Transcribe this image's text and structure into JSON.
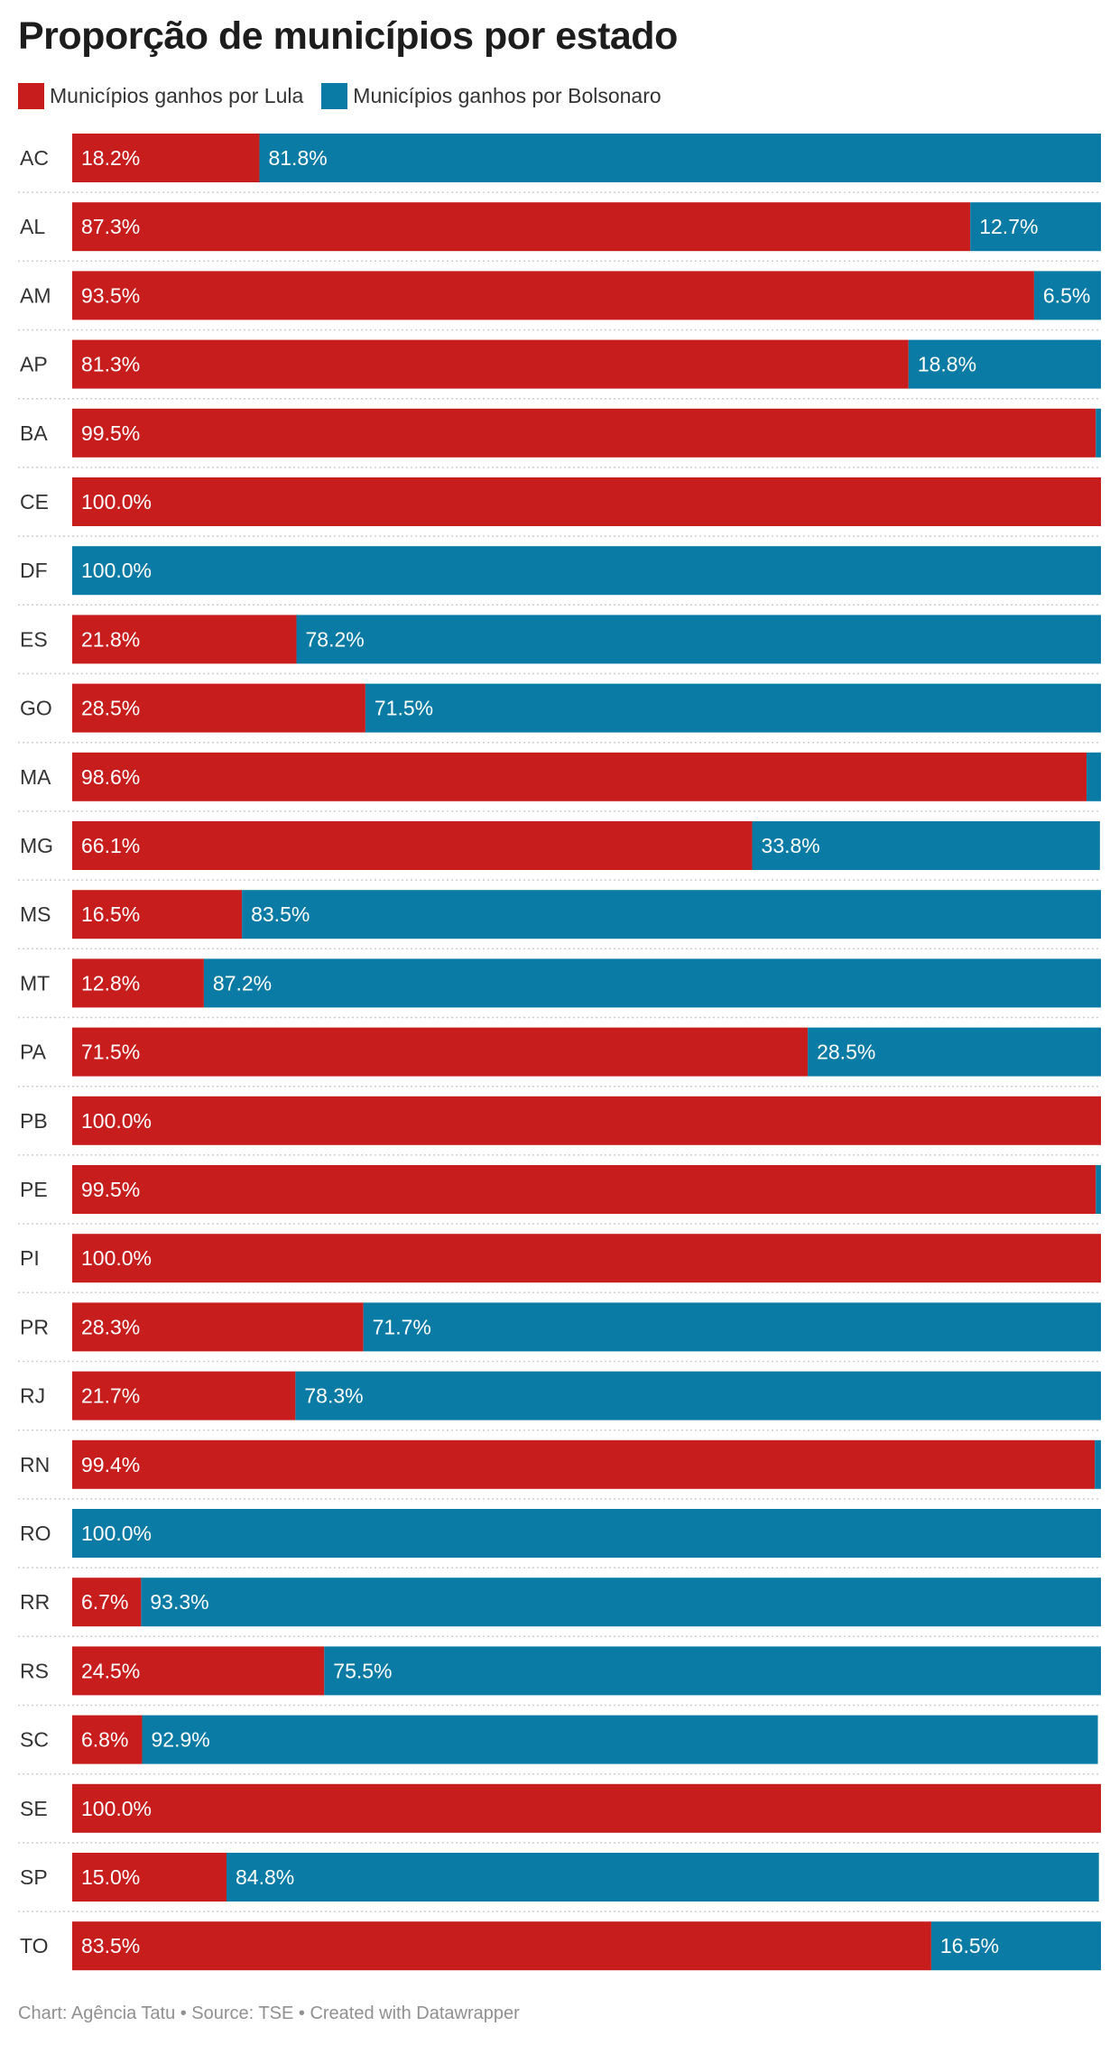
{
  "footer": "Chart: Agência Tatu • Source: TSE • Created with Datawrapper",
  "colors": {
    "lula": "#c71e1d",
    "bolsonaro": "#0a7ba5"
  },
  "chart_data": {
    "type": "bar",
    "orientation": "horizontal",
    "stacked": true,
    "title": "Proporção de municípios por estado",
    "xlim": [
      0,
      100
    ],
    "legend_position": "top-left",
    "grid": false,
    "categories": [
      "AC",
      "AL",
      "AM",
      "AP",
      "BA",
      "CE",
      "DF",
      "ES",
      "GO",
      "MA",
      "MG",
      "MS",
      "MT",
      "PA",
      "PB",
      "PE",
      "PI",
      "PR",
      "RJ",
      "RN",
      "RO",
      "RR",
      "RS",
      "SC",
      "SE",
      "SP",
      "TO"
    ],
    "series": [
      {
        "name": "Municípios ganhos por Lula",
        "color": "#c71e1d",
        "values": [
          18.2,
          87.3,
          93.5,
          81.3,
          99.5,
          100.0,
          0,
          21.8,
          28.5,
          98.6,
          66.1,
          16.5,
          12.8,
          71.5,
          100.0,
          99.5,
          100.0,
          28.3,
          21.7,
          99.4,
          0,
          6.7,
          24.5,
          6.8,
          100.0,
          15.0,
          83.5
        ],
        "labels": [
          "18.2%",
          "87.3%",
          "93.5%",
          "81.3%",
          "99.5%",
          "100.0%",
          "",
          "21.8%",
          "28.5%",
          "98.6%",
          "66.1%",
          "16.5%",
          "12.8%",
          "71.5%",
          "100.0%",
          "99.5%",
          "100.0%",
          "28.3%",
          "21.7%",
          "99.4%",
          "",
          "6.7%",
          "24.5%",
          "6.8%",
          "100.0%",
          "15.0%",
          "83.5%"
        ]
      },
      {
        "name": "Municípios ganhos por Bolsonaro",
        "color": "#0a7ba5",
        "values": [
          81.8,
          12.7,
          6.5,
          18.8,
          0.5,
          0,
          100.0,
          78.2,
          71.5,
          1.4,
          33.8,
          83.5,
          87.2,
          28.5,
          0,
          0.5,
          0,
          71.7,
          78.3,
          0.6,
          100.0,
          93.3,
          75.5,
          92.9,
          0,
          84.8,
          16.5
        ],
        "labels": [
          "81.8%",
          "12.7%",
          "6.5%",
          "18.8%",
          "",
          "",
          "100.0%",
          "78.2%",
          "71.5%",
          "",
          "33.8%",
          "83.5%",
          "87.2%",
          "28.5%",
          "",
          "",
          "",
          "71.7%",
          "78.3%",
          "",
          "100.0%",
          "93.3%",
          "75.5%",
          "92.9%",
          "",
          "84.8%",
          "16.5%"
        ]
      }
    ]
  }
}
